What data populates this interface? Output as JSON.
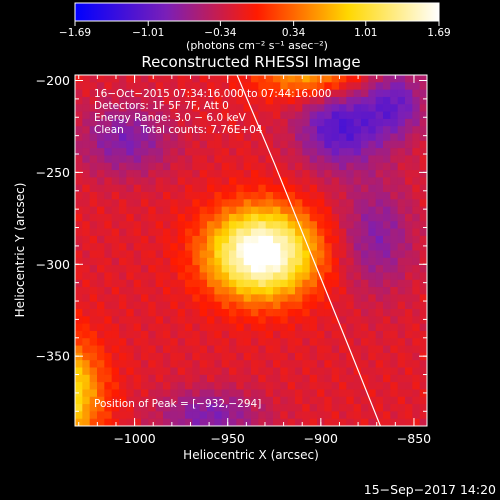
{
  "chart_data": {
    "type": "heatmap",
    "title": "Reconstructed RHESSI Image",
    "xlabel": "Heliocentric X (arcsec)",
    "ylabel": "Heliocentric Y (arcsec)",
    "xlim": [
      -1032,
      -843
    ],
    "ylim": [
      -388,
      -197
    ],
    "x_ticks": [
      {
        "value": -1000,
        "label": "−1000"
      },
      {
        "value": -950,
        "label": "−950"
      },
      {
        "value": -900,
        "label": "−900"
      },
      {
        "value": -850,
        "label": "−850"
      }
    ],
    "y_ticks": [
      {
        "value": -200,
        "label": "−200"
      },
      {
        "value": -250,
        "label": "−250"
      },
      {
        "value": -300,
        "label": "−300"
      },
      {
        "value": -350,
        "label": "−350"
      }
    ],
    "colorbar": {
      "range": [
        -1.69,
        1.69
      ],
      "ticks": [
        {
          "value": -1.69,
          "label": "−1.69"
        },
        {
          "value": -1.01,
          "label": "−1.01"
        },
        {
          "value": -0.34,
          "label": "−0.34"
        },
        {
          "value": 0.34,
          "label": "0.34"
        },
        {
          "value": 1.01,
          "label": "1.01"
        },
        {
          "value": 1.69,
          "label": "1.69"
        }
      ],
      "unit_label": "(photons cm⁻² s⁻¹ asec⁻²)",
      "colors": [
        "#0000ff",
        "#7a1fb8",
        "#ff1b00",
        "#ffd700",
        "#ffffff"
      ]
    },
    "info_lines": [
      "16−Oct−2015 07:34:16.000 to 07:44:16.000",
      "Detectors: 1F 5F 7F, Att 0",
      "Energy Range: 3.0 − 6.0 keV",
      "Clean     Total counts: 7.76E+04"
    ],
    "peak_label": "Position of Peak = [−932,−294]",
    "peak": {
      "x": -932,
      "y": -294,
      "value": 1.69
    },
    "sources": [
      {
        "x": -932,
        "y": -294,
        "sx": 20,
        "sy": 17,
        "value": 2.1
      },
      {
        "x": -1040,
        "y": -370,
        "sx": 15,
        "sy": 20,
        "value": 1.4
      },
      {
        "x": -905,
        "y": -196,
        "sx": 20,
        "sy": 10,
        "value": 0.9
      },
      {
        "x": -890,
        "y": -225,
        "sx": 16,
        "sy": 16,
        "value": -0.9
      },
      {
        "x": -860,
        "y": -212,
        "sx": 12,
        "sy": 14,
        "value": -0.7
      },
      {
        "x": -1005,
        "y": -232,
        "sx": 18,
        "sy": 14,
        "value": -0.6
      },
      {
        "x": -870,
        "y": -285,
        "sx": 14,
        "sy": 22,
        "value": -0.55
      },
      {
        "x": -960,
        "y": -382,
        "sx": 20,
        "sy": 10,
        "value": -0.6
      }
    ],
    "background_level": -0.2,
    "limb_curve": [
      {
        "x": -945,
        "y": -197
      },
      {
        "x": -925,
        "y": -245
      },
      {
        "x": -905,
        "y": -295
      },
      {
        "x": -885,
        "y": -345
      },
      {
        "x": -868,
        "y": -388
      }
    ],
    "limb_color": "#ffffff",
    "timestamp": "15−Sep−2017 14:20"
  }
}
